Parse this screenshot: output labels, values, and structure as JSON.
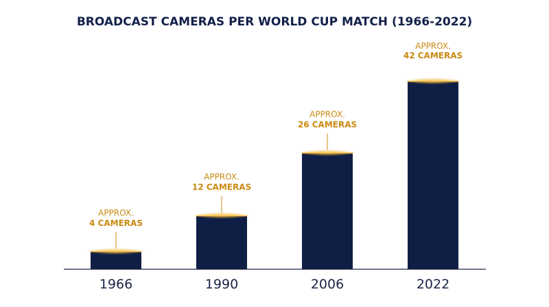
{
  "chart_data": {
    "type": "bar",
    "title": "BROADCAST CAMERAS PER WORLD CUP MATCH (1966-2022)",
    "categories": [
      "1966",
      "1990",
      "2006",
      "2022"
    ],
    "values": [
      4,
      12,
      26,
      42
    ],
    "data_labels": [
      {
        "line1": "APPROX.",
        "line2": "4 CAMERAS"
      },
      {
        "line1": "APPROX.",
        "line2": "12 CAMERAS"
      },
      {
        "line1": "APPROX.",
        "line2": "26 CAMERAS"
      },
      {
        "line1": "APPROX.",
        "line2": "42 CAMERAS"
      }
    ],
    "xlabel": "",
    "ylabel": "",
    "ylim": [
      0,
      42
    ],
    "grid": false,
    "legend": "none"
  },
  "colors": {
    "bar": "#0f1e45",
    "title": "#12214a",
    "accent": "#c98a12",
    "glow": "#f5b93a",
    "axis": "#1b2447",
    "tick": "#1b2447"
  }
}
